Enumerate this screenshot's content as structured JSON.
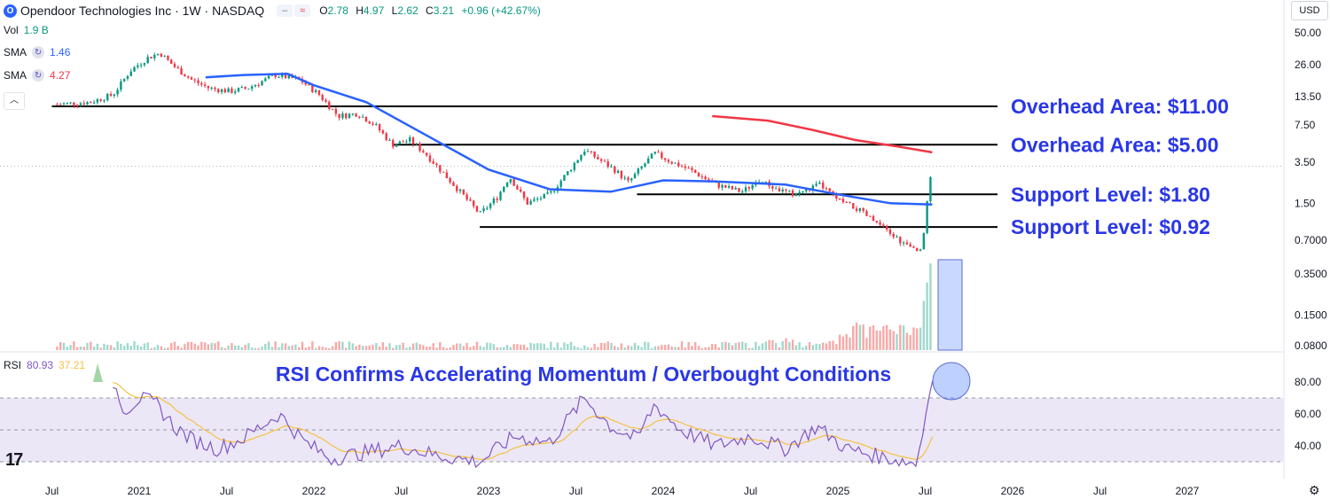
{
  "header": {
    "logo_letter": "O",
    "title": "Opendoor Technologies Inc · 1W · NASDAQ",
    "ohlc": [
      {
        "k": "O",
        "v": "2.78"
      },
      {
        "k": "H",
        "v": "4.97"
      },
      {
        "k": "L",
        "v": "2.62"
      },
      {
        "k": "C",
        "v": "3.21"
      }
    ],
    "change": "+0.96 (+42.67%)",
    "currency": "USD"
  },
  "indicators": {
    "vol": {
      "label": "Vol",
      "value": "1.9 B"
    },
    "sma1": {
      "label": "SMA",
      "value": "1.46",
      "color": "#2962ff"
    },
    "sma2": {
      "label": "SMA",
      "value": "4.27",
      "color": "#f23645"
    },
    "rsi": {
      "label": "RSI",
      "value": "80.93",
      "ma_value": "37.21"
    }
  },
  "colors": {
    "up": "#089981",
    "down": "#f23645",
    "sma50": "#2962ff",
    "sma200": "#f23645",
    "annotation": "#2a37e6",
    "rsi": "#7e57c2",
    "rsi_ma": "#f5c141",
    "rsi_band": "#ece7f7"
  },
  "chart_data": {
    "type": "candlestick",
    "y_scale": "log",
    "y_ticks": [
      "50.00",
      "26.00",
      "13.50",
      "7.50",
      "3.50",
      "1.50",
      "0.7000",
      "0.3500",
      "0.1500",
      "0.0800"
    ],
    "x_ticks": [
      "Jul",
      "2021",
      "Jul",
      "2022",
      "Jul",
      "2023",
      "Jul",
      "2024",
      "Jul",
      "2025",
      "Jul",
      "2026",
      "Jul",
      "2027"
    ],
    "price_close_path": [
      {
        "t": 2020.53,
        "v": 11.5
      },
      {
        "t": 2020.72,
        "v": 12.0
      },
      {
        "t": 2020.85,
        "v": 14.0
      },
      {
        "t": 2020.95,
        "v": 23.0
      },
      {
        "t": 2021.05,
        "v": 30.0
      },
      {
        "t": 2021.12,
        "v": 33.0
      },
      {
        "t": 2021.2,
        "v": 25.0
      },
      {
        "t": 2021.3,
        "v": 19.0
      },
      {
        "t": 2021.4,
        "v": 16.0
      },
      {
        "t": 2021.52,
        "v": 15.0
      },
      {
        "t": 2021.62,
        "v": 16.0
      },
      {
        "t": 2021.78,
        "v": 21.0
      },
      {
        "t": 2021.92,
        "v": 19.0
      },
      {
        "t": 2022.03,
        "v": 14.0
      },
      {
        "t": 2022.14,
        "v": 9.0
      },
      {
        "t": 2022.25,
        "v": 9.5
      },
      {
        "t": 2022.35,
        "v": 7.5
      },
      {
        "t": 2022.45,
        "v": 5.0
      },
      {
        "t": 2022.55,
        "v": 5.5
      },
      {
        "t": 2022.65,
        "v": 4.0
      },
      {
        "t": 2022.8,
        "v": 2.2
      },
      {
        "t": 2022.95,
        "v": 1.2
      },
      {
        "t": 2023.05,
        "v": 1.7
      },
      {
        "t": 2023.12,
        "v": 2.6
      },
      {
        "t": 2023.22,
        "v": 1.5
      },
      {
        "t": 2023.35,
        "v": 1.8
      },
      {
        "t": 2023.45,
        "v": 2.8
      },
      {
        "t": 2023.55,
        "v": 4.5
      },
      {
        "t": 2023.62,
        "v": 3.8
      },
      {
        "t": 2023.72,
        "v": 3.0
      },
      {
        "t": 2023.8,
        "v": 2.3
      },
      {
        "t": 2023.88,
        "v": 3.2
      },
      {
        "t": 2023.95,
        "v": 4.2
      },
      {
        "t": 2024.05,
        "v": 3.5
      },
      {
        "t": 2024.15,
        "v": 3.0
      },
      {
        "t": 2024.3,
        "v": 2.2
      },
      {
        "t": 2024.45,
        "v": 1.9
      },
      {
        "t": 2024.55,
        "v": 2.4
      },
      {
        "t": 2024.65,
        "v": 2.0
      },
      {
        "t": 2024.75,
        "v": 1.8
      },
      {
        "t": 2024.9,
        "v": 2.2
      },
      {
        "t": 2025.0,
        "v": 1.6
      },
      {
        "t": 2025.12,
        "v": 1.3
      },
      {
        "t": 2025.22,
        "v": 1.0
      },
      {
        "t": 2025.3,
        "v": 0.8
      },
      {
        "t": 2025.38,
        "v": 0.65
      },
      {
        "t": 2025.45,
        "v": 0.55
      },
      {
        "t": 2025.48,
        "v": 0.62
      },
      {
        "t": 2025.5,
        "v": 1.1
      },
      {
        "t": 2025.52,
        "v": 2.25
      },
      {
        "t": 2025.54,
        "v": 3.21
      }
    ],
    "sma50": [
      {
        "t": 2021.38,
        "v": 20.0
      },
      {
        "t": 2021.6,
        "v": 21.0
      },
      {
        "t": 2021.85,
        "v": 21.5
      },
      {
        "t": 2022.0,
        "v": 17.0
      },
      {
        "t": 2022.3,
        "v": 12.0
      },
      {
        "t": 2022.65,
        "v": 6.0
      },
      {
        "t": 2023.0,
        "v": 3.0
      },
      {
        "t": 2023.35,
        "v": 2.0
      },
      {
        "t": 2023.7,
        "v": 1.9
      },
      {
        "t": 2024.0,
        "v": 2.4
      },
      {
        "t": 2024.3,
        "v": 2.35
      },
      {
        "t": 2024.7,
        "v": 2.2
      },
      {
        "t": 2025.0,
        "v": 1.8
      },
      {
        "t": 2025.3,
        "v": 1.5
      },
      {
        "t": 2025.54,
        "v": 1.46
      }
    ],
    "sma200": [
      {
        "t": 2024.28,
        "v": 9.0
      },
      {
        "t": 2024.6,
        "v": 8.2
      },
      {
        "t": 2024.85,
        "v": 6.8
      },
      {
        "t": 2025.1,
        "v": 5.5
      },
      {
        "t": 2025.35,
        "v": 4.8
      },
      {
        "t": 2025.54,
        "v": 4.27
      }
    ],
    "horizontal_levels": [
      {
        "label": "Overhead Area: $11.00",
        "value": 11.0,
        "from": 2020.5
      },
      {
        "label": "Overhead Area: $5.00",
        "value": 5.0,
        "from": 2022.45
      },
      {
        "label": "Support Level: $1.80",
        "value": 1.8,
        "from": 2023.85
      },
      {
        "label": "Support Level: $0.92",
        "value": 0.92,
        "from": 2022.95
      }
    ],
    "volume_note": "Volume spike highlighted in July 2025",
    "rsi": {
      "label": "RSI Confirms Accelerating Momentum / Overbought Conditions",
      "y_ticks": [
        "80.00",
        "60.00",
        "40.00"
      ],
      "upper": 70,
      "lower": 30,
      "series": [
        {
          "t": 2020.85,
          "v": 80
        },
        {
          "t": 2020.92,
          "v": 62
        },
        {
          "t": 2021.0,
          "v": 70
        },
        {
          "t": 2021.1,
          "v": 66
        },
        {
          "t": 2021.2,
          "v": 52
        },
        {
          "t": 2021.3,
          "v": 44
        },
        {
          "t": 2021.45,
          "v": 38
        },
        {
          "t": 2021.6,
          "v": 45
        },
        {
          "t": 2021.8,
          "v": 60
        },
        {
          "t": 2021.95,
          "v": 42
        },
        {
          "t": 2022.1,
          "v": 32
        },
        {
          "t": 2022.3,
          "v": 36
        },
        {
          "t": 2022.5,
          "v": 40
        },
        {
          "t": 2022.7,
          "v": 34
        },
        {
          "t": 2022.95,
          "v": 30
        },
        {
          "t": 2023.15,
          "v": 46
        },
        {
          "t": 2023.35,
          "v": 42
        },
        {
          "t": 2023.55,
          "v": 70
        },
        {
          "t": 2023.7,
          "v": 52
        },
        {
          "t": 2023.85,
          "v": 44
        },
        {
          "t": 2023.95,
          "v": 66
        },
        {
          "t": 2024.1,
          "v": 50
        },
        {
          "t": 2024.3,
          "v": 40
        },
        {
          "t": 2024.5,
          "v": 46
        },
        {
          "t": 2024.7,
          "v": 38
        },
        {
          "t": 2024.88,
          "v": 52
        },
        {
          "t": 2025.05,
          "v": 38
        },
        {
          "t": 2025.25,
          "v": 33
        },
        {
          "t": 2025.45,
          "v": 29
        },
        {
          "t": 2025.54,
          "v": 80.93
        }
      ]
    }
  }
}
